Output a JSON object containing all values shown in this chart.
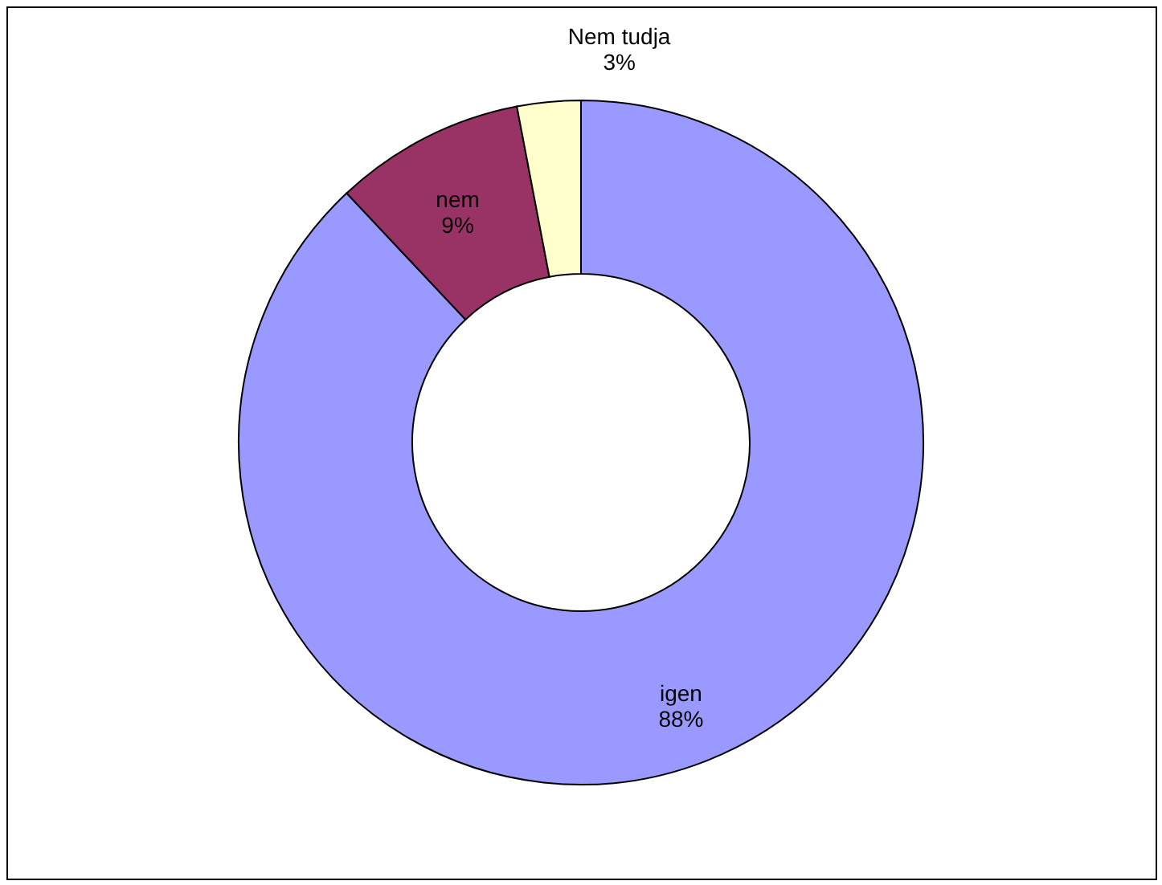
{
  "chart_data": {
    "type": "donut",
    "categories": [
      "igen",
      "nem",
      "Nem tudja"
    ],
    "values": [
      88,
      9,
      3
    ],
    "colors": [
      "#9999ff",
      "#993366",
      "#ffffcc"
    ],
    "value_labels": [
      "88%",
      "9%",
      "3%"
    ]
  }
}
